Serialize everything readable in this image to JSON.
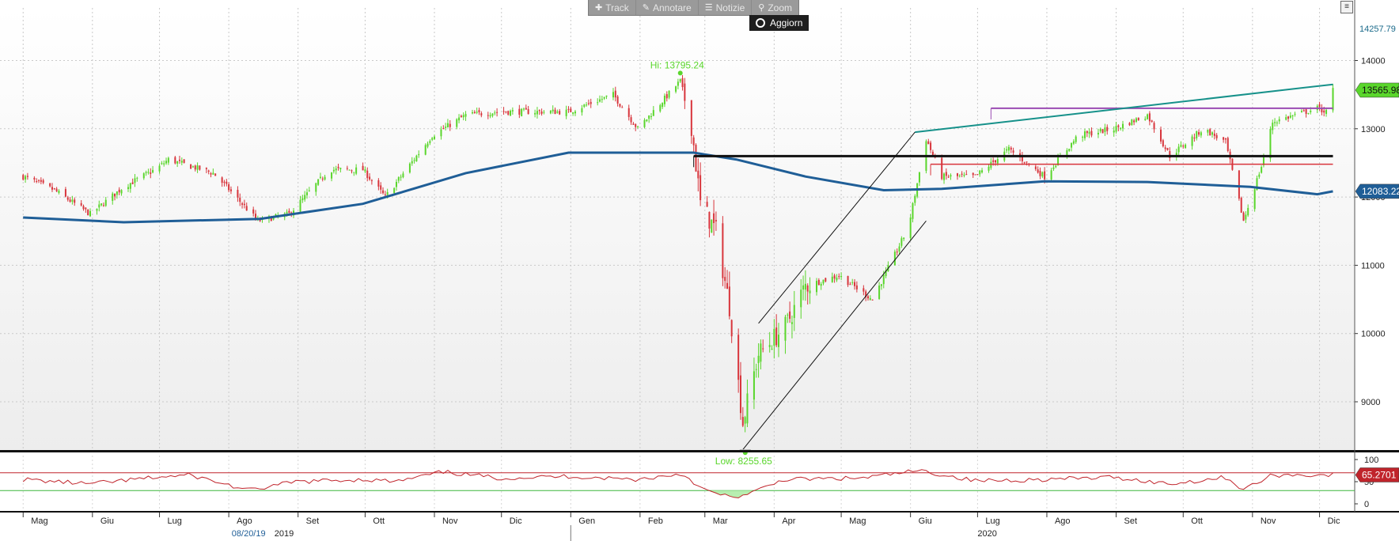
{
  "toolbar": {
    "track": "Track",
    "annotate": "Annotare",
    "news": "Notizie",
    "zoom": "Zoom",
    "update": "Aggiorn"
  },
  "colors": {
    "up": "#5ad62c",
    "down": "#d8353c",
    "ma": "#1f5e97",
    "trend": "#16918a",
    "purple": "#9a4bb3",
    "rsi": "#c0242b",
    "rsi_low": "#3cb53c"
  },
  "chart_data": [
    {
      "type": "candlestick",
      "y_axis": {
        "ylim": [
          8100,
          14600
        ],
        "ticks": [
          "9000",
          "10000",
          "11000",
          "12000",
          "13000",
          "14000"
        ]
      },
      "x_axis": {
        "months": [
          "Mag",
          "Giu",
          "Lug",
          "Ago",
          "Set",
          "Ott",
          "Nov",
          "Dic",
          "Gen",
          "Feb",
          "Mar",
          "Apr",
          "Mag",
          "Giu",
          "Lug",
          "Ago",
          "Set",
          "Ott",
          "Nov",
          "Dic"
        ],
        "years": [
          "2019",
          "2020"
        ],
        "cursor_date": "08/20/19"
      },
      "close_path": [
        [
          "2019-05-01",
          12300
        ],
        [
          "2019-05-15",
          12100
        ],
        [
          "2019-05-31",
          11750
        ],
        [
          "2019-06-15",
          12150
        ],
        [
          "2019-06-30",
          12420
        ],
        [
          "2019-07-05",
          12550
        ],
        [
          "2019-07-25",
          12350
        ],
        [
          "2019-07-31",
          12150
        ],
        [
          "2019-08-14",
          11650
        ],
        [
          "2019-08-28",
          11750
        ],
        [
          "2019-09-15",
          12400
        ],
        [
          "2019-09-30",
          12400
        ],
        [
          "2019-10-10",
          12000
        ],
        [
          "2019-10-31",
          12900
        ],
        [
          "2019-11-15",
          13200
        ],
        [
          "2019-11-30",
          13250
        ],
        [
          "2019-12-15",
          13250
        ],
        [
          "2019-12-31",
          13250
        ],
        [
          "2020-01-20",
          13500
        ],
        [
          "2020-01-31",
          13000
        ],
        [
          "2020-02-19",
          13700
        ],
        [
          "2020-02-24",
          13050
        ],
        [
          "2020-02-28",
          11900
        ],
        [
          "2020-03-06",
          11500
        ],
        [
          "2020-03-12",
          10400
        ],
        [
          "2020-03-18",
          8700
        ],
        [
          "2020-03-25",
          9700
        ],
        [
          "2020-04-06",
          10100
        ],
        [
          "2020-04-15",
          10700
        ],
        [
          "2020-04-30",
          10850
        ],
        [
          "2020-05-15",
          10500
        ],
        [
          "2020-05-31",
          11550
        ],
        [
          "2020-06-08",
          12850
        ],
        [
          "2020-06-15",
          12300
        ],
        [
          "2020-06-30",
          12300
        ],
        [
          "2020-07-15",
          12700
        ],
        [
          "2020-07-31",
          12300
        ],
        [
          "2020-08-15",
          12900
        ],
        [
          "2020-08-31",
          13000
        ],
        [
          "2020-09-15",
          13200
        ],
        [
          "2020-09-25",
          12600
        ],
        [
          "2020-10-10",
          13000
        ],
        [
          "2020-10-20",
          12800
        ],
        [
          "2020-10-28",
          11650
        ],
        [
          "2020-11-05",
          12450
        ],
        [
          "2020-11-10",
          13100
        ],
        [
          "2020-11-30",
          13300
        ],
        [
          "2020-12-04",
          13250
        ],
        [
          "2020-12-07",
          13565.98
        ]
      ],
      "moving_average": [
        [
          "2019-05-01",
          11700
        ],
        [
          "2019-06-15",
          11630
        ],
        [
          "2019-08-15",
          11680
        ],
        [
          "2019-09-30",
          11900
        ],
        [
          "2019-11-15",
          12350
        ],
        [
          "2019-12-31",
          12650
        ],
        [
          "2020-02-15",
          12650
        ],
        [
          "2020-02-25",
          12650
        ],
        [
          "2020-03-15",
          12550
        ],
        [
          "2020-04-15",
          12300
        ],
        [
          "2020-05-20",
          12100
        ],
        [
          "2020-06-15",
          12120
        ],
        [
          "2020-07-31",
          12230
        ],
        [
          "2020-09-15",
          12220
        ],
        [
          "2020-10-31",
          12150
        ],
        [
          "2020-11-30",
          12040
        ],
        [
          "2020-12-07",
          12083.22
        ]
      ],
      "markers": {
        "high": "Hi: 13795.24",
        "low": "Low: 8255.65"
      },
      "price_labels": {
        "last": "13565.98",
        "ma": "12083.22",
        "top": "14257.79"
      },
      "trend_lines": [
        {
          "name": "rising-resistance",
          "from": [
            "2020-06-03",
            12950
          ],
          "to": [
            "2020-12-07",
            13650
          ]
        },
        {
          "name": "channel-upper",
          "from": [
            "2020-03-25",
            10150
          ],
          "to": [
            "2020-06-03",
            12950
          ]
        },
        {
          "name": "channel-lower",
          "from": [
            "2020-03-18",
            8300
          ],
          "to": [
            "2020-06-08",
            11650
          ]
        }
      ],
      "levels": [
        {
          "name": "purple-resistance",
          "value": 13300,
          "from": "2020-07-07",
          "to": "2020-12-07"
        },
        {
          "name": "black-support",
          "value": 12600,
          "from": "2020-02-25",
          "to": "2020-12-07"
        },
        {
          "name": "red-support",
          "value": 12480,
          "from": "2020-06-10",
          "to": "2020-12-07"
        }
      ]
    },
    {
      "type": "line",
      "name": "rsi-panel",
      "ylim": [
        0,
        100
      ],
      "ticks": [
        "0",
        "50",
        "100"
      ],
      "reference_lines": [
        70,
        30
      ],
      "last_label": "65.2701",
      "values": [
        [
          "2019-05-01",
          55
        ],
        [
          "2019-05-31",
          45
        ],
        [
          "2019-06-30",
          60
        ],
        [
          "2019-07-15",
          65
        ],
        [
          "2019-08-10",
          30
        ],
        [
          "2019-08-31",
          50
        ],
        [
          "2019-09-30",
          55
        ],
        [
          "2019-10-15",
          50
        ],
        [
          "2019-11-05",
          72
        ],
        [
          "2019-11-30",
          58
        ],
        [
          "2019-12-31",
          62
        ],
        [
          "2020-01-31",
          55
        ],
        [
          "2020-02-20",
          68
        ],
        [
          "2020-03-01",
          30
        ],
        [
          "2020-03-12",
          15
        ],
        [
          "2020-03-20",
          20
        ],
        [
          "2020-04-05",
          55
        ],
        [
          "2020-05-10",
          58
        ],
        [
          "2020-06-05",
          75
        ],
        [
          "2020-06-30",
          52
        ],
        [
          "2020-07-31",
          55
        ],
        [
          "2020-08-31",
          60
        ],
        [
          "2020-09-25",
          45
        ],
        [
          "2020-10-20",
          60
        ],
        [
          "2020-10-28",
          32
        ],
        [
          "2020-11-10",
          65
        ],
        [
          "2020-12-07",
          65.27
        ]
      ]
    }
  ]
}
